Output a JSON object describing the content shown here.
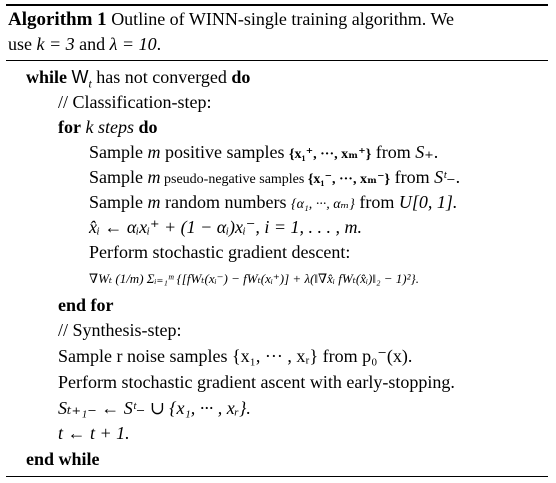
{
  "caption": {
    "label": "Algorithm 1",
    "text_line1": "Outline of WINN-single training algorithm.  We",
    "text_line2_pre": "use ",
    "k_eq": "k = 3",
    "and": " and ",
    "lambda_eq": "λ = 10",
    "end": "."
  },
  "algorithm": {
    "while_kw": "while",
    "while_cond": "W",
    "while_sub": "t",
    "while_text": " has not converged ",
    "do_kw": "do",
    "comment_class": "// Classification-step:",
    "for_kw": "for",
    "for_text": " k steps ",
    "for_do": "do",
    "sample_pos_pre": "Sample ",
    "sample_pos_m": "m",
    "sample_pos_mid": " positive samples ",
    "sample_pos_set": "{x₁⁺, ···, xₘ⁺}",
    "sample_pos_from": " from ",
    "sample_pos_S": "S₊",
    "sample_pos_end": ".",
    "sample_neg_pre": "Sample ",
    "sample_neg_m": "m",
    "sample_neg_mid": " pseudo-negative samples ",
    "sample_neg_set": "{x₁⁻, ···, xₘ⁻}",
    "sample_neg_from": " from ",
    "sample_neg_S": "Sᵗ₋",
    "sample_neg_end": ".",
    "sample_rand_pre": "Sample ",
    "sample_rand_m": "m",
    "sample_rand_mid": " random numbers ",
    "sample_rand_set": "{α₁, ···, αₘ}",
    "sample_rand_from": " from ",
    "sample_rand_U": "U[0, 1].",
    "interp": "x̂ᵢ ← αᵢxᵢ⁺ + (1 − αᵢ)xᵢ⁻, i = 1, . . . , m.",
    "perform_sgd": "Perform stochastic gradient descent:",
    "gradient": "∇Wₜ (1/m) Σᵢ₌₁ᵐ {[fWₜ(xᵢ⁻) − fWₜ(xᵢ⁺)] + λ(‖∇x̂ᵢ fWₜ(x̂ᵢ)‖₂ − 1)²}.",
    "end_for": "end for",
    "comment_synth": "// Synthesis-step:",
    "sample_noise": "Sample r noise samples {x₁, ··· , xᵣ} from p₀⁻(x).",
    "perform_sga": "Perform stochastic gradient ascent with early-stopping.",
    "update_set": "Sₜ₊₁₋ ← Sᵗ₋ ∪ {x₁, ··· , xᵣ}.",
    "update_t": "t ← t + 1.",
    "end_while": "end while"
  }
}
